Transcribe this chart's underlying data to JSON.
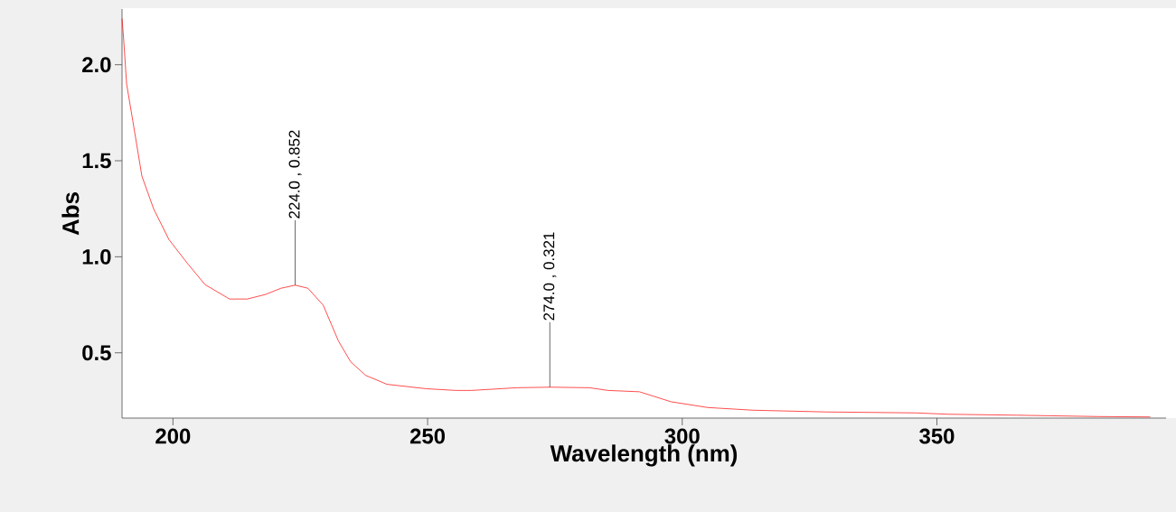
{
  "chart_data": {
    "type": "line",
    "xlabel": "Wavelength (nm)",
    "ylabel": "Abs",
    "x": [
      190.0,
      190.3,
      190.9,
      192.1,
      193.9,
      196.2,
      199.2,
      202.8,
      206.3,
      211.1,
      214.6,
      218.2,
      221.2,
      224.0,
      226.5,
      229.5,
      232.5,
      234.9,
      237.8,
      242.0,
      249.7,
      255.6,
      258.6,
      267.5,
      274.0,
      281.8,
      285.4,
      291.6,
      297.8,
      305.0,
      313.9,
      328.1,
      345.9,
      352.2,
      365.6,
      381.6,
      391.9
    ],
    "series": [
      {
        "color": "#ff0000",
        "values": [
          2.24,
          2.14,
          1.9,
          1.71,
          1.42,
          1.25,
          1.09,
          0.967,
          0.855,
          0.78,
          0.78,
          0.804,
          0.836,
          0.852,
          0.836,
          0.748,
          0.561,
          0.453,
          0.383,
          0.336,
          0.313,
          0.304,
          0.304,
          0.318,
          0.321,
          0.318,
          0.304,
          0.297,
          0.245,
          0.215,
          0.201,
          0.192,
          0.187,
          0.18,
          0.175,
          0.168,
          0.166
        ]
      }
    ],
    "xlim": [
      190,
      395
    ],
    "ylim": [
      0.16,
      2.29
    ],
    "xticks": [
      200,
      250,
      300,
      350
    ],
    "yticks": [
      {
        "value": 0.5,
        "label": "0.5"
      },
      {
        "value": 1.0,
        "label": "1.0"
      },
      {
        "value": 1.5,
        "label": "1.5"
      },
      {
        "value": 2.0,
        "label": "2.0"
      }
    ],
    "annotations": [
      {
        "text": "224.0 , 0.852",
        "x": 224.0,
        "y": 0.852
      },
      {
        "text": "274.0 , 0.321",
        "x": 274.0,
        "y": 0.321
      }
    ],
    "marker": "none",
    "line_style": "solid"
  }
}
